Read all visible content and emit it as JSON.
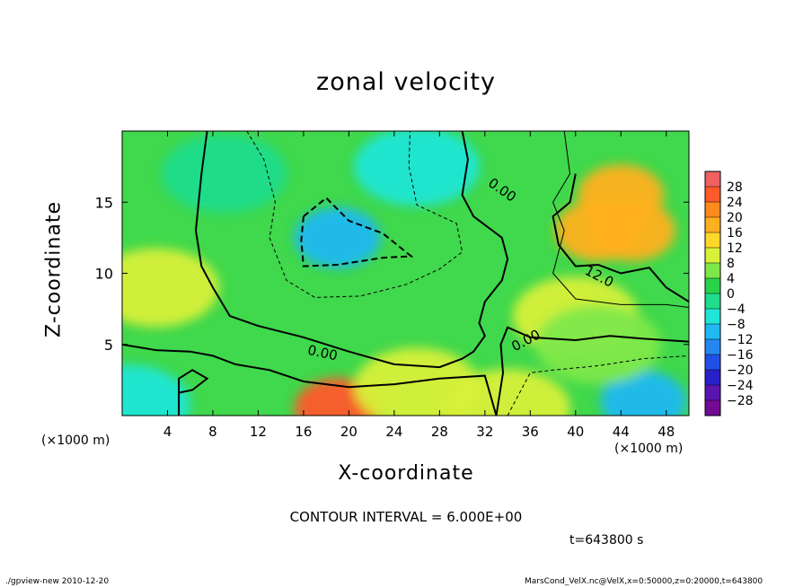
{
  "title": "zonal velocity",
  "chart_data": {
    "type": "heatmap",
    "title": "zonal velocity",
    "xlabel": "X-coordinate",
    "ylabel": "Z-coordinate",
    "x_unit": "(×1000 m)",
    "xlim": [
      0,
      50
    ],
    "ylim": [
      0,
      20
    ],
    "x_ticks": [
      4,
      8,
      12,
      16,
      20,
      24,
      28,
      32,
      36,
      40,
      44,
      48
    ],
    "y_ticks": [
      5,
      10,
      15
    ],
    "colorbar_ticks": [
      28,
      24,
      20,
      16,
      12,
      8,
      4,
      0,
      -4,
      -8,
      -12,
      -16,
      -20,
      -24,
      -28
    ],
    "colorbar_colors": [
      "#f06060",
      "#ff5a2a",
      "#ff8a1c",
      "#ffb020",
      "#ffd62a",
      "#d8f038",
      "#7ee84a",
      "#28d24a",
      "#20dc8c",
      "#20e6d6",
      "#20b8f0",
      "#2488f0",
      "#2050e6",
      "#2820c8",
      "#5c14b0",
      "#720a94"
    ],
    "contour_interval_text": "CONTOUR INTERVAL = 6.000E+00",
    "contour_labels": [
      "0.00",
      "0.00",
      "0.00",
      "12.0"
    ],
    "features": [
      {
        "x": 19,
        "z": 12.5,
        "value": -13
      },
      {
        "x": 19,
        "z": 0.5,
        "value": 24
      },
      {
        "x": 44,
        "z": 15.5,
        "value": 18
      },
      {
        "x": 45,
        "z": 13,
        "value": 17
      },
      {
        "x": 42,
        "z": 13,
        "value": 16
      },
      {
        "x": 46,
        "z": 1,
        "value": -12
      },
      {
        "x": 0.5,
        "z": 0.8,
        "value": -9
      },
      {
        "x": 3,
        "z": 9,
        "value": 7
      },
      {
        "x": 26,
        "z": 2,
        "value": 8
      },
      {
        "x": 34,
        "z": 0.5,
        "value": 7
      },
      {
        "x": 26,
        "z": 17.5,
        "value": -6
      },
      {
        "x": 9,
        "z": 17,
        "value": -3
      },
      {
        "x": 40,
        "z": 7,
        "value": 8
      },
      {
        "x": 42,
        "z": 5,
        "value": 4
      }
    ]
  },
  "time_label": "t=643800 s",
  "footer_left": "./gpview-new   2010-12-20",
  "footer_right": "MarsCond_VelX.nc@VelX,x=0:50000,z=0:20000,t=643800"
}
